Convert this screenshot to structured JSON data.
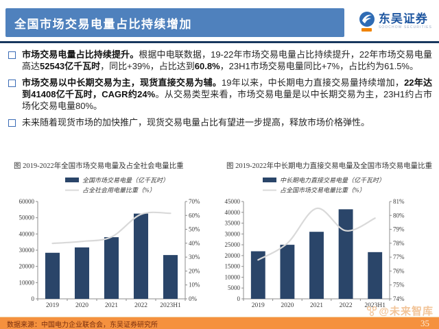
{
  "header": {
    "title": "全国市场交易电量占比持续增加",
    "logo": {
      "name": "东吴证券",
      "subtitle": "SOOCHOW SECURITIES"
    }
  },
  "bullets": [
    {
      "segments": [
        {
          "text": "市场交易电量占比持续提升。",
          "bold": true
        },
        {
          "text": "根据中电联数据，19-22年市场交易电量占比持续提升，22年市场交易电量高达",
          "bold": false
        },
        {
          "text": "52543亿千瓦时",
          "bold": true
        },
        {
          "text": "，同比+39%，占比达到",
          "bold": false
        },
        {
          "text": "60.8%",
          "bold": true
        },
        {
          "text": "，23H1市场交易电量同比+7%，占比约为61.5%。",
          "bold": false
        }
      ]
    },
    {
      "segments": [
        {
          "text": "市场交易以中长期交易为主，现货直接交易为辅。",
          "bold": true
        },
        {
          "text": "19年以来，中长期电力直接交易量持续增加，",
          "bold": false
        },
        {
          "text": "22年达到41408亿千瓦时，CAGR约24%",
          "bold": true
        },
        {
          "text": "。从交易类型来看，市场交易电量是以中长期交易为主，23H1约占市场化交易电量80%。",
          "bold": false
        }
      ]
    },
    {
      "segments": [
        {
          "text": "未来随着现货市场的加快推广，现货交易电量占比有望进一步提高，释放市场价格弹性。",
          "bold": false
        }
      ]
    }
  ],
  "chart_data": [
    {
      "type": "bar",
      "title": "图  2019-2022年全国市场交易电量及占全社会电量比重",
      "categories": [
        "2019",
        "2020",
        "2021",
        "2022",
        "2023H1"
      ],
      "series": [
        {
          "name": "全国市场交易电量（亿千瓦时）",
          "type": "bar",
          "axis": "left",
          "values": [
            28400,
            31700,
            38000,
            52543,
            27000
          ]
        },
        {
          "name": "占全社会用电量比重（%）",
          "type": "line",
          "axis": "right",
          "values": [
            39.9,
            41.3,
            44.5,
            60.8,
            61.5
          ]
        }
      ],
      "left_axis": {
        "min": 0,
        "max": 60000,
        "step": 10000
      },
      "right_axis": {
        "min": 0,
        "max": 70,
        "step": 10,
        "suffix": "%"
      },
      "legend_position": "top",
      "grid": false
    },
    {
      "type": "bar",
      "title": "图  2019-2022年中长期电力直接交易电量及全国市场交易电量比重",
      "categories": [
        "2019",
        "2020",
        "2021",
        "2022",
        "2023H1"
      ],
      "series": [
        {
          "name": "中长期电力直接交易电量（亿千瓦时）",
          "type": "bar",
          "axis": "left",
          "values": [
            22000,
            25000,
            31000,
            41408,
            21600
          ]
        },
        {
          "name": "占全国市场交易电量比重（%）",
          "type": "line",
          "axis": "right",
          "values": [
            76.8,
            78.0,
            80.5,
            78.9,
            79.8
          ]
        }
      ],
      "left_axis": {
        "min": 0,
        "max": 45000,
        "step": 5000
      },
      "right_axis": {
        "min": 74,
        "max": 81,
        "step": 1,
        "suffix": "%"
      },
      "legend_position": "top",
      "grid": false
    }
  ],
  "watermark": {
    "text": "@未来智库"
  },
  "footer": {
    "source": "数据来源：中国电力企业联合会，东吴证券研究所",
    "page": "35"
  },
  "colors": {
    "banner": "#4F81BD",
    "divider": "#17375E",
    "bar": "#2A4569",
    "trend_line": "#D9D9D9",
    "footer_bar": "#F5913E",
    "bullet_marker": "#3A6BB5",
    "logo_blue": "#1E56A0",
    "logo_orange": "#F08300",
    "watermark": "#F2C498"
  }
}
